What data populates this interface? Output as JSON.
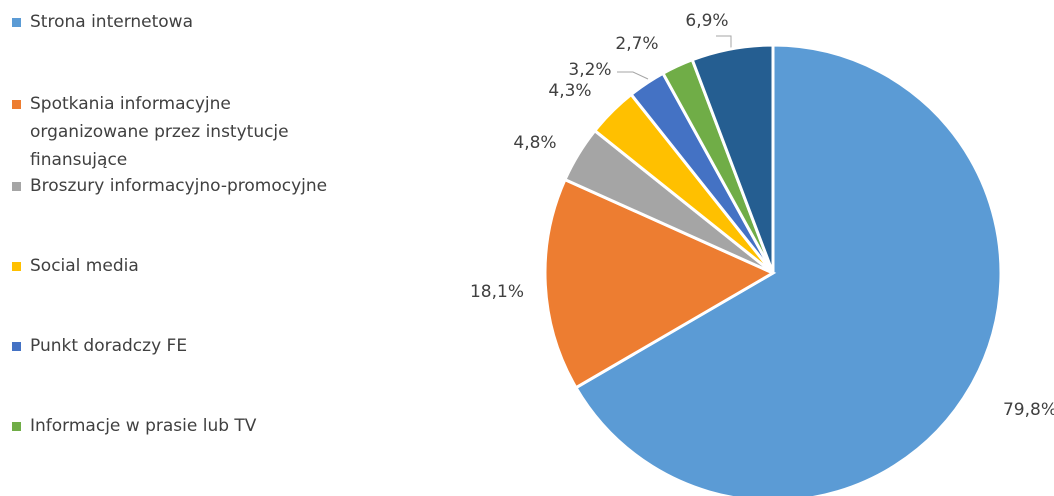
{
  "chart_data": {
    "type": "pie",
    "categories": [
      "Strona internetowa",
      "Spotkania informacyjne organizowane przez instytucje finansujące",
      "Broszury informacyjno-promocyjne",
      "Social media",
      "Punkt doradczy FE",
      "Informacje w prasie lub TV",
      null
    ],
    "values": [
      79.8,
      18.1,
      4.8,
      4.3,
      3.2,
      2.7,
      6.9
    ],
    "value_labels": [
      "79,8%",
      "18,1%",
      "4,8%",
      "4,3%",
      "3,2%",
      "2,7%",
      "6,9%"
    ],
    "colors": [
      "#5b9bd5",
      "#ed7d31",
      "#a5a5a5",
      "#ffc000",
      "#4472c4",
      "#70ad47",
      "#255e91"
    ],
    "legend": "left"
  }
}
